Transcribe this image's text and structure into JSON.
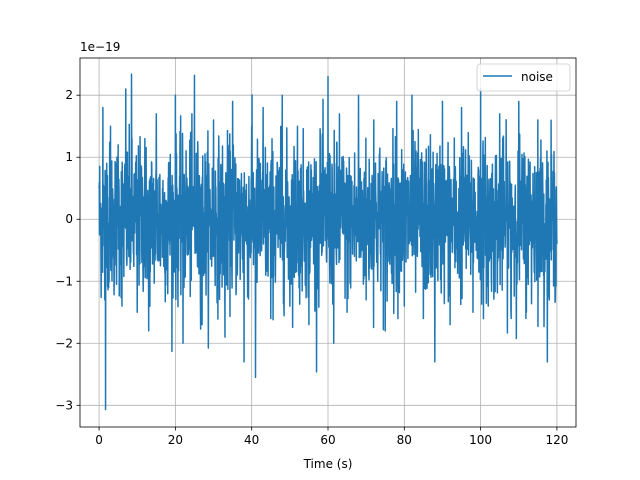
{
  "chart_data": {
    "type": "line",
    "title": "",
    "xlabel": "Time (s)",
    "ylabel": "",
    "y_offset_text": "1e−19",
    "y_scale_exponent": -19,
    "xlim": [
      -5,
      125
    ],
    "ylim": [
      -3.35,
      2.6
    ],
    "x_ticks": [
      0,
      20,
      40,
      60,
      80,
      100,
      120
    ],
    "y_ticks": [
      -3,
      -2,
      -1,
      0,
      1,
      2
    ],
    "x_tick_labels": [
      "0",
      "20",
      "40",
      "60",
      "80",
      "100",
      "120"
    ],
    "y_tick_labels": [
      "−3",
      "−2",
      "−1",
      "0",
      "1",
      "2"
    ],
    "grid": true,
    "legend": {
      "position": "upper-right",
      "entries": [
        "noise"
      ]
    },
    "series": [
      {
        "name": "noise",
        "color": "#1f77b4",
        "x_start": 0,
        "x_end": 120,
        "y_std_estimate": 0.72,
        "y_min_observed": -3.07,
        "y_max_observed": 2.34,
        "x_values": [
          0,
          0.5,
          1.0,
          1.5,
          1.7,
          2.0,
          2.5,
          3.0,
          4.0,
          5.0,
          6.0,
          7.0,
          7.8,
          8.5,
          10.0,
          12.0,
          13.0,
          15.0,
          18.0,
          20.0,
          22.0,
          24.0,
          25.0,
          27.0,
          30.0,
          33.0,
          35.0,
          38.0,
          40.0,
          41.0,
          43.0,
          45.0,
          48.0,
          50.0,
          52.0,
          55.0,
          58.0,
          60.0,
          61.5,
          63.0,
          65.0,
          68.0,
          70.0,
          72.0,
          75.0,
          78.0,
          80.0,
          82.0,
          85.0,
          88.0,
          90.0,
          92.0,
          95.0,
          98.0,
          100.0,
          102.0,
          105.0,
          108.0,
          110.0,
          112.0,
          115.0,
          118.0,
          120.0
        ],
        "y_values": [
          0.5,
          -0.7,
          1.8,
          -1.3,
          -3.07,
          0.9,
          -1.1,
          1.5,
          -0.9,
          1.2,
          -1.4,
          2.1,
          -0.6,
          2.34,
          -1.5,
          1.3,
          -1.8,
          1.7,
          -1.2,
          2.0,
          -2.0,
          1.4,
          2.32,
          -1.7,
          1.6,
          -1.9,
          1.9,
          -2.3,
          1.5,
          -2.55,
          1.8,
          -1.6,
          2.0,
          -1.4,
          1.5,
          -1.7,
          1.3,
          2.3,
          -2.0,
          1.7,
          -1.5,
          2.0,
          -1.3,
          1.6,
          -1.8,
          1.9,
          -1.4,
          2.0,
          -1.6,
          -2.3,
          1.9,
          -1.7,
          1.8,
          -1.5,
          2.1,
          -1.4,
          1.7,
          -1.6,
          1.9,
          -1.5,
          1.6,
          -1.3,
          -0.4
        ]
      }
    ]
  }
}
